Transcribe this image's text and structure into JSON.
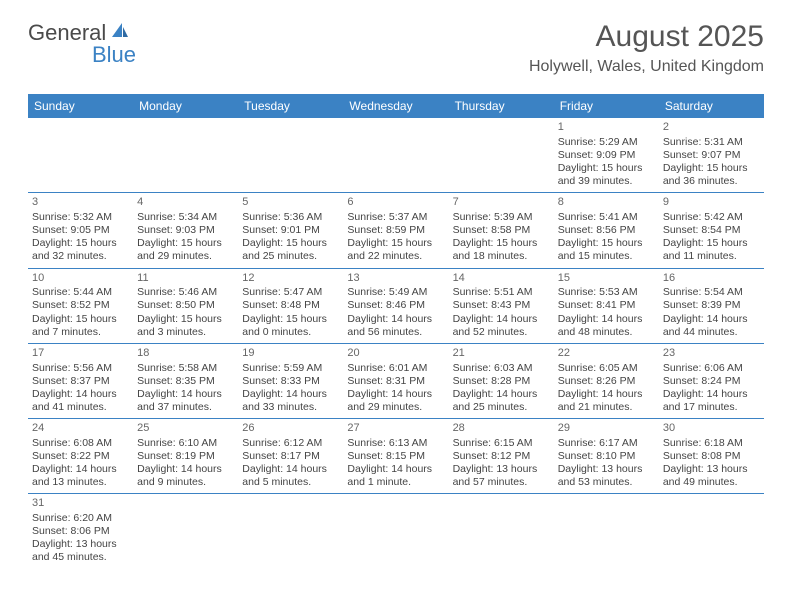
{
  "logo": {
    "text1": "General",
    "text2": "Blue"
  },
  "title": "August 2025",
  "location": "Holywell, Wales, United Kingdom",
  "colors": {
    "header_bg": "#3b82c4",
    "header_text": "#ffffff",
    "text": "#444444",
    "rule": "#3b82c4"
  },
  "day_headers": [
    "Sunday",
    "Monday",
    "Tuesday",
    "Wednesday",
    "Thursday",
    "Friday",
    "Saturday"
  ],
  "weeks": [
    [
      null,
      null,
      null,
      null,
      null,
      {
        "n": "1",
        "sr": "Sunrise: 5:29 AM",
        "ss": "Sunset: 9:09 PM",
        "dl": "Daylight: 15 hours and 39 minutes."
      },
      {
        "n": "2",
        "sr": "Sunrise: 5:31 AM",
        "ss": "Sunset: 9:07 PM",
        "dl": "Daylight: 15 hours and 36 minutes."
      }
    ],
    [
      {
        "n": "3",
        "sr": "Sunrise: 5:32 AM",
        "ss": "Sunset: 9:05 PM",
        "dl": "Daylight: 15 hours and 32 minutes."
      },
      {
        "n": "4",
        "sr": "Sunrise: 5:34 AM",
        "ss": "Sunset: 9:03 PM",
        "dl": "Daylight: 15 hours and 29 minutes."
      },
      {
        "n": "5",
        "sr": "Sunrise: 5:36 AM",
        "ss": "Sunset: 9:01 PM",
        "dl": "Daylight: 15 hours and 25 minutes."
      },
      {
        "n": "6",
        "sr": "Sunrise: 5:37 AM",
        "ss": "Sunset: 8:59 PM",
        "dl": "Daylight: 15 hours and 22 minutes."
      },
      {
        "n": "7",
        "sr": "Sunrise: 5:39 AM",
        "ss": "Sunset: 8:58 PM",
        "dl": "Daylight: 15 hours and 18 minutes."
      },
      {
        "n": "8",
        "sr": "Sunrise: 5:41 AM",
        "ss": "Sunset: 8:56 PM",
        "dl": "Daylight: 15 hours and 15 minutes."
      },
      {
        "n": "9",
        "sr": "Sunrise: 5:42 AM",
        "ss": "Sunset: 8:54 PM",
        "dl": "Daylight: 15 hours and 11 minutes."
      }
    ],
    [
      {
        "n": "10",
        "sr": "Sunrise: 5:44 AM",
        "ss": "Sunset: 8:52 PM",
        "dl": "Daylight: 15 hours and 7 minutes."
      },
      {
        "n": "11",
        "sr": "Sunrise: 5:46 AM",
        "ss": "Sunset: 8:50 PM",
        "dl": "Daylight: 15 hours and 3 minutes."
      },
      {
        "n": "12",
        "sr": "Sunrise: 5:47 AM",
        "ss": "Sunset: 8:48 PM",
        "dl": "Daylight: 15 hours and 0 minutes."
      },
      {
        "n": "13",
        "sr": "Sunrise: 5:49 AM",
        "ss": "Sunset: 8:46 PM",
        "dl": "Daylight: 14 hours and 56 minutes."
      },
      {
        "n": "14",
        "sr": "Sunrise: 5:51 AM",
        "ss": "Sunset: 8:43 PM",
        "dl": "Daylight: 14 hours and 52 minutes."
      },
      {
        "n": "15",
        "sr": "Sunrise: 5:53 AM",
        "ss": "Sunset: 8:41 PM",
        "dl": "Daylight: 14 hours and 48 minutes."
      },
      {
        "n": "16",
        "sr": "Sunrise: 5:54 AM",
        "ss": "Sunset: 8:39 PM",
        "dl": "Daylight: 14 hours and 44 minutes."
      }
    ],
    [
      {
        "n": "17",
        "sr": "Sunrise: 5:56 AM",
        "ss": "Sunset: 8:37 PM",
        "dl": "Daylight: 14 hours and 41 minutes."
      },
      {
        "n": "18",
        "sr": "Sunrise: 5:58 AM",
        "ss": "Sunset: 8:35 PM",
        "dl": "Daylight: 14 hours and 37 minutes."
      },
      {
        "n": "19",
        "sr": "Sunrise: 5:59 AM",
        "ss": "Sunset: 8:33 PM",
        "dl": "Daylight: 14 hours and 33 minutes."
      },
      {
        "n": "20",
        "sr": "Sunrise: 6:01 AM",
        "ss": "Sunset: 8:31 PM",
        "dl": "Daylight: 14 hours and 29 minutes."
      },
      {
        "n": "21",
        "sr": "Sunrise: 6:03 AM",
        "ss": "Sunset: 8:28 PM",
        "dl": "Daylight: 14 hours and 25 minutes."
      },
      {
        "n": "22",
        "sr": "Sunrise: 6:05 AM",
        "ss": "Sunset: 8:26 PM",
        "dl": "Daylight: 14 hours and 21 minutes."
      },
      {
        "n": "23",
        "sr": "Sunrise: 6:06 AM",
        "ss": "Sunset: 8:24 PM",
        "dl": "Daylight: 14 hours and 17 minutes."
      }
    ],
    [
      {
        "n": "24",
        "sr": "Sunrise: 6:08 AM",
        "ss": "Sunset: 8:22 PM",
        "dl": "Daylight: 14 hours and 13 minutes."
      },
      {
        "n": "25",
        "sr": "Sunrise: 6:10 AM",
        "ss": "Sunset: 8:19 PM",
        "dl": "Daylight: 14 hours and 9 minutes."
      },
      {
        "n": "26",
        "sr": "Sunrise: 6:12 AM",
        "ss": "Sunset: 8:17 PM",
        "dl": "Daylight: 14 hours and 5 minutes."
      },
      {
        "n": "27",
        "sr": "Sunrise: 6:13 AM",
        "ss": "Sunset: 8:15 PM",
        "dl": "Daylight: 14 hours and 1 minute."
      },
      {
        "n": "28",
        "sr": "Sunrise: 6:15 AM",
        "ss": "Sunset: 8:12 PM",
        "dl": "Daylight: 13 hours and 57 minutes."
      },
      {
        "n": "29",
        "sr": "Sunrise: 6:17 AM",
        "ss": "Sunset: 8:10 PM",
        "dl": "Daylight: 13 hours and 53 minutes."
      },
      {
        "n": "30",
        "sr": "Sunrise: 6:18 AM",
        "ss": "Sunset: 8:08 PM",
        "dl": "Daylight: 13 hours and 49 minutes."
      }
    ],
    [
      {
        "n": "31",
        "sr": "Sunrise: 6:20 AM",
        "ss": "Sunset: 8:06 PM",
        "dl": "Daylight: 13 hours and 45 minutes."
      },
      null,
      null,
      null,
      null,
      null,
      null
    ]
  ]
}
